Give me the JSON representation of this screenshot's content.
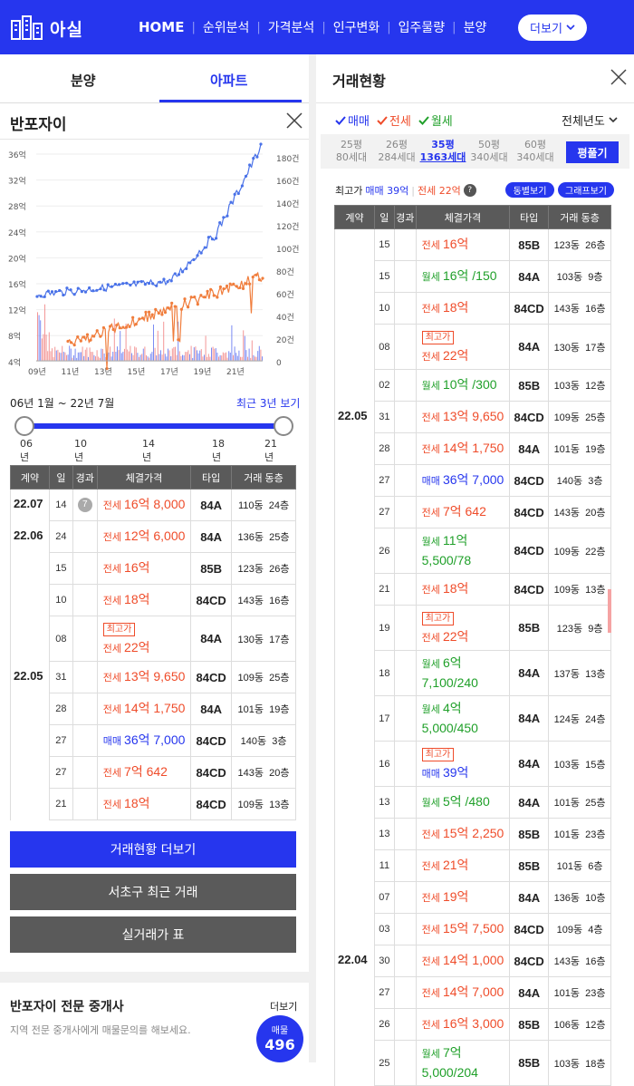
{
  "header": {
    "logo_text": "아실",
    "nav": [
      "HOME",
      "순위분석",
      "가격분석",
      "인구변화",
      "입주물량",
      "분양"
    ],
    "more": "더보기"
  },
  "left": {
    "tabs": [
      "분양",
      "아파트"
    ],
    "apt_title": "반포자이",
    "chart": {
      "left_axis": [
        "36억",
        "32억",
        "28억",
        "24억",
        "20억",
        "16억",
        "12억",
        "8억",
        "4억"
      ],
      "right_axis": [
        "180건",
        "160건",
        "140건",
        "120건",
        "100건",
        "80건",
        "60건",
        "40건",
        "20건",
        "0"
      ],
      "x_ticks": [
        "09년",
        "11년",
        "13년",
        "15년",
        "17년",
        "19년",
        "21년"
      ]
    },
    "range_text": "06년 1월 ~ 22년 7월",
    "recent_label": "최근 3년 보기",
    "slider_years": [
      "06년",
      "10년",
      "14년",
      "18년",
      "21년"
    ],
    "table_headers": [
      "계약",
      "일",
      "경과",
      "체결가격",
      "타입",
      "거래 동층"
    ],
    "rows": [
      {
        "month": "22.07",
        "day": "14",
        "badge": "7",
        "kind": "전세",
        "cls": "j",
        "price": "16억 8,000",
        "type": "84A",
        "dong": "110동",
        "floor": "24층"
      },
      {
        "month": "22.06",
        "day": "24",
        "kind": "전세",
        "cls": "j",
        "price": "12억 6,000",
        "type": "84A",
        "dong": "136동",
        "floor": "25층"
      },
      {
        "day": "15",
        "kind": "전세",
        "cls": "j",
        "price": "16억",
        "type": "85B",
        "dong": "123동",
        "floor": "26층"
      },
      {
        "day": "10",
        "kind": "전세",
        "cls": "j",
        "price": "18억",
        "type": "84CD",
        "dong": "143동",
        "floor": "16층"
      },
      {
        "day": "08",
        "high": "최고가",
        "kind": "전세",
        "cls": "j",
        "price": "22억",
        "type": "84A",
        "dong": "130동",
        "floor": "17층"
      },
      {
        "month": "22.05",
        "day": "31",
        "kind": "전세",
        "cls": "j",
        "price": "13억 9,650",
        "type": "84CD",
        "dong": "109동",
        "floor": "25층"
      },
      {
        "day": "28",
        "kind": "전세",
        "cls": "j",
        "price": "14억 1,750",
        "type": "84A",
        "dong": "101동",
        "floor": "19층"
      },
      {
        "day": "27",
        "kind": "매매",
        "cls": "m",
        "price": "36억 7,000",
        "type": "84CD",
        "dong": "140동",
        "floor": "3층"
      },
      {
        "day": "27",
        "kind": "전세",
        "cls": "j",
        "price": "7억 642",
        "type": "84CD",
        "dong": "143동",
        "floor": "20층"
      },
      {
        "day": "21",
        "kind": "전세",
        "cls": "j",
        "price": "18억",
        "type": "84CD",
        "dong": "109동",
        "floor": "13층"
      }
    ],
    "buttons": [
      "거래현황 더보기",
      "서초구 최근 거래",
      "실거래가 표"
    ],
    "agent_title": "반포자이 전문 중개사",
    "agent_more": "더보기",
    "agent_desc": "지역 전문 중개사에게 매물문의를 해보세요.",
    "listing_label": "매물",
    "listing_count": "496"
  },
  "right": {
    "title": "거래현황",
    "filters": [
      {
        "label": "매매",
        "color": "#2636ee"
      },
      {
        "label": "전세",
        "color": "#ef4c2a"
      },
      {
        "label": "월세",
        "color": "#20a02a"
      }
    ],
    "year_select": "전체년도",
    "pyeong_tabs": [
      {
        "p": "25평",
        "h": "80세대"
      },
      {
        "p": "26평",
        "h": "284세대"
      },
      {
        "p": "35평",
        "h": "1363세대"
      },
      {
        "p": "50평",
        "h": "340세대"
      },
      {
        "p": "60평",
        "h": "340세대"
      }
    ],
    "pyeong_fold": "평풀기",
    "max_label": "최고가",
    "max_sale": "매매 39억",
    "max_jeonse": "전세 22억",
    "pill1": "동별보기",
    "pill2": "그래프보기",
    "table_headers": [
      "계약",
      "일",
      "경과",
      "체결가격",
      "타입",
      "거래 동층"
    ],
    "rows": [
      {
        "day": "15",
        "kind": "전세",
        "cls": "j",
        "price": "16억",
        "type": "85B",
        "dong": "123동",
        "floor": "26층"
      },
      {
        "day": "15",
        "kind": "월세",
        "cls": "w",
        "price": "16억 /150",
        "type": "84A",
        "dong": "103동",
        "floor": "9층"
      },
      {
        "day": "10",
        "kind": "전세",
        "cls": "j",
        "price": "18억",
        "type": "84CD",
        "dong": "143동",
        "floor": "16층"
      },
      {
        "day": "08",
        "high": "최고가",
        "kind": "전세",
        "cls": "j",
        "price": "22억",
        "type": "84A",
        "dong": "130동",
        "floor": "17층"
      },
      {
        "day": "02",
        "kind": "월세",
        "cls": "w",
        "price": "10억 /300",
        "type": "85B",
        "dong": "103동",
        "floor": "12층"
      },
      {
        "month": "22.05",
        "day": "31",
        "kind": "전세",
        "cls": "j",
        "price": "13억 9,650",
        "type": "84CD",
        "dong": "109동",
        "floor": "25층"
      },
      {
        "day": "28",
        "kind": "전세",
        "cls": "j",
        "price": "14억 1,750",
        "type": "84A",
        "dong": "101동",
        "floor": "19층"
      },
      {
        "day": "27",
        "kind": "매매",
        "cls": "m",
        "price": "36억 7,000",
        "type": "84CD",
        "dong": "140동",
        "floor": "3층"
      },
      {
        "day": "27",
        "kind": "전세",
        "cls": "j",
        "price": "7억 642",
        "type": "84CD",
        "dong": "143동",
        "floor": "20층"
      },
      {
        "day": "26",
        "kind": "월세",
        "cls": "w",
        "price": "11억",
        "price2": "5,500/78",
        "type": "84CD",
        "dong": "109동",
        "floor": "22층"
      },
      {
        "day": "21",
        "kind": "전세",
        "cls": "j",
        "price": "18억",
        "type": "84CD",
        "dong": "109동",
        "floor": "13층"
      },
      {
        "day": "19",
        "high": "최고가",
        "kind": "전세",
        "cls": "j",
        "price": "22억",
        "type": "85B",
        "dong": "123동",
        "floor": "9층"
      },
      {
        "day": "18",
        "kind": "월세",
        "cls": "w",
        "price": "6억",
        "price2": "7,100/240",
        "type": "84A",
        "dong": "137동",
        "floor": "13층"
      },
      {
        "day": "17",
        "kind": "월세",
        "cls": "w",
        "price": "4억",
        "price2": "5,000/450",
        "type": "84A",
        "dong": "124동",
        "floor": "24층"
      },
      {
        "day": "16",
        "high": "최고가",
        "kind": "매매",
        "cls": "m",
        "price": "39억",
        "type": "84A",
        "dong": "103동",
        "floor": "15층"
      },
      {
        "day": "13",
        "kind": "월세",
        "cls": "w",
        "price": "5억 /480",
        "type": "84A",
        "dong": "101동",
        "floor": "25층"
      },
      {
        "day": "13",
        "kind": "전세",
        "cls": "j",
        "price": "15억 2,250",
        "type": "85B",
        "dong": "101동",
        "floor": "23층"
      },
      {
        "day": "11",
        "kind": "전세",
        "cls": "j",
        "price": "21억",
        "type": "85B",
        "dong": "101동",
        "floor": "6층"
      },
      {
        "day": "07",
        "kind": "전세",
        "cls": "j",
        "price": "19억",
        "type": "84A",
        "dong": "136동",
        "floor": "10층"
      },
      {
        "day": "03",
        "kind": "전세",
        "cls": "j",
        "price": "15억 7,500",
        "type": "84CD",
        "dong": "109동",
        "floor": "4층"
      },
      {
        "month": "22.04",
        "day": "30",
        "kind": "전세",
        "cls": "j",
        "price": "14억 1,000",
        "type": "84CD",
        "dong": "143동",
        "floor": "16층"
      },
      {
        "day": "27",
        "kind": "전세",
        "cls": "j",
        "price": "14억 7,000",
        "type": "84A",
        "dong": "101동",
        "floor": "23층"
      },
      {
        "day": "26",
        "kind": "전세",
        "cls": "j",
        "price": "16억 3,000",
        "type": "85B",
        "dong": "106동",
        "floor": "12층"
      },
      {
        "day": "25",
        "kind": "월세",
        "cls": "w",
        "price": "7억",
        "price2": "5,000/204",
        "type": "85B",
        "dong": "103동",
        "floor": "18층"
      }
    ]
  }
}
